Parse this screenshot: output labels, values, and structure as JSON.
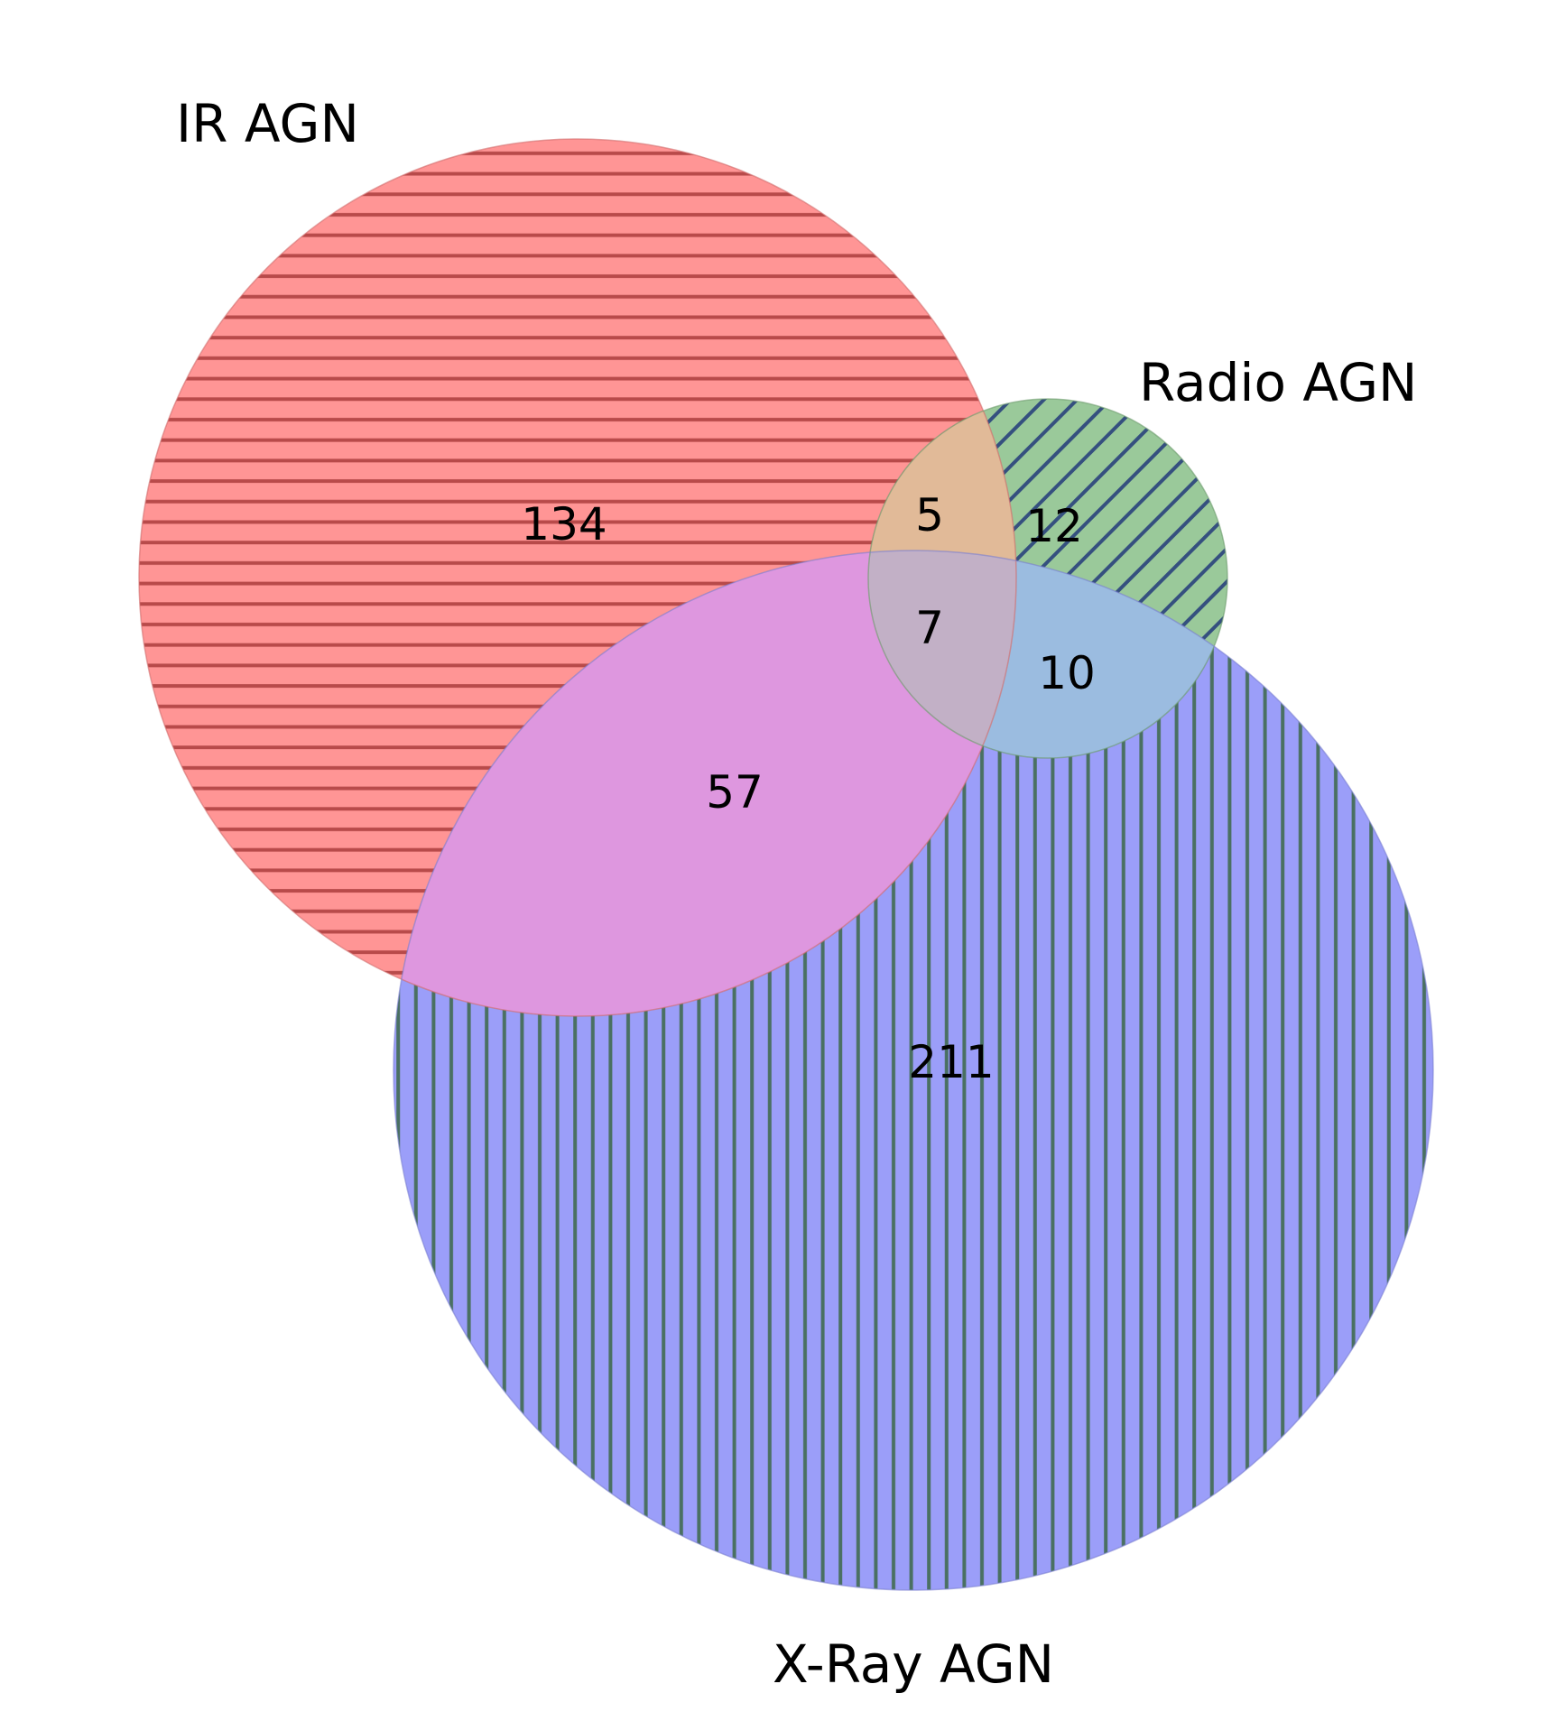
{
  "diagram": {
    "type": "venn3",
    "sets": [
      {
        "id": "ir",
        "label": "IR AGN",
        "color": "#ff6b6b",
        "hatch_color": "#b33a3a"
      },
      {
        "id": "radio",
        "label": "Radio AGN",
        "color": "#6aae6a",
        "hatch_color": "#2f4f7f"
      },
      {
        "id": "xray",
        "label": "X-Ray AGN",
        "color": "#6f73f5",
        "hatch_color": "#3f6a55"
      }
    ],
    "regions": [
      {
        "id": "ir_only",
        "sets": [
          "ir"
        ],
        "count": "134"
      },
      {
        "id": "radio_only",
        "sets": [
          "radio"
        ],
        "count": "12"
      },
      {
        "id": "xray_only",
        "sets": [
          "xray"
        ],
        "count": "211"
      },
      {
        "id": "ir_radio",
        "sets": [
          "ir",
          "radio"
        ],
        "count": "5"
      },
      {
        "id": "ir_xray",
        "sets": [
          "ir",
          "xray"
        ],
        "count": "57"
      },
      {
        "id": "radio_xray",
        "sets": [
          "radio",
          "xray"
        ],
        "count": "10"
      },
      {
        "id": "ir_radio_xray",
        "sets": [
          "ir",
          "radio",
          "xray"
        ],
        "count": "7"
      }
    ]
  }
}
